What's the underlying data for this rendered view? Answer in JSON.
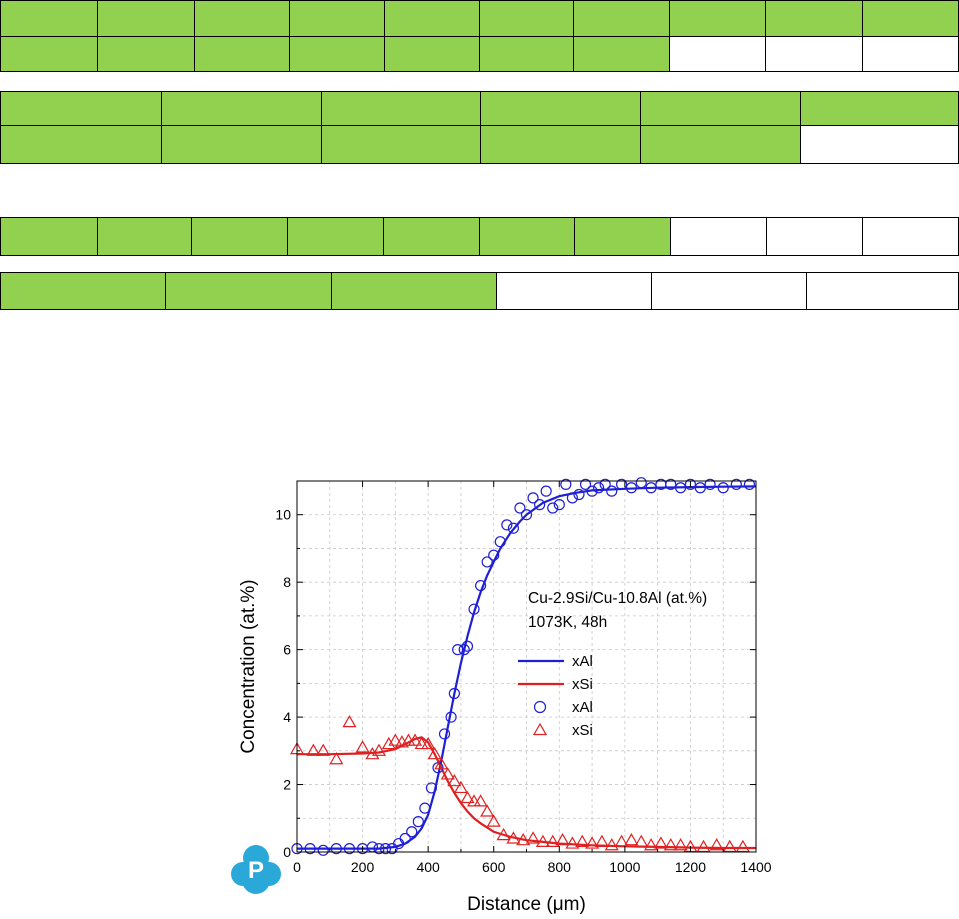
{
  "table_blocks": {
    "block1_row1": [
      "g",
      "g",
      "g",
      "g",
      "g",
      "g",
      "g",
      "g",
      "g",
      "g"
    ],
    "block1_row2": [
      "g",
      "g",
      "g",
      "g",
      "g",
      "g",
      "g",
      "w",
      "w",
      "w"
    ],
    "block2_row1": [
      "g",
      "g",
      "g",
      "g",
      "g",
      "g"
    ],
    "block2_row2": [
      "g",
      "g",
      "g",
      "g",
      "g",
      "w"
    ],
    "block3_row1": [
      "g",
      "g",
      "g",
      "g",
      "g",
      "g",
      "g",
      "w",
      "w",
      "w"
    ],
    "block4_row1": [
      "g",
      "g",
      "g",
      "w",
      "w",
      "w"
    ],
    "colors": {
      "filled": "#92d050",
      "empty": "#ffffff",
      "border": "#000000"
    }
  },
  "logo": {
    "letter": "P",
    "color": "#2aa8d8"
  },
  "chart_data": {
    "type": "line",
    "xlabel_prefix": "Distance (",
    "xlabel_mu": "μ",
    "xlabel_suffix": "m)",
    "ylabel": "Concentration (at.%)",
    "xlim": [
      0,
      1400
    ],
    "ylim": [
      0,
      11
    ],
    "xticks": [
      0,
      200,
      400,
      600,
      800,
      1000,
      1200,
      1400
    ],
    "yticks": [
      0,
      2,
      4,
      6,
      8,
      10
    ],
    "grid": true,
    "annotation": [
      "Cu-2.9Si/Cu-10.8Al (at.%)",
      "1073K, 48h"
    ],
    "legend": [
      {
        "label": "xAl",
        "kind": "line",
        "color": "#1f1fd6"
      },
      {
        "label": "xSi",
        "kind": "line",
        "color": "#e02020"
      },
      {
        "label": "xAl",
        "kind": "circle",
        "color": "#1f1fd6"
      },
      {
        "label": "xSi",
        "kind": "triangle",
        "color": "#e02020"
      }
    ],
    "series": [
      {
        "name": "xAl",
        "kind": "line",
        "color": "#1f1fd6",
        "x": [
          0,
          100,
          200,
          250,
          300,
          330,
          360,
          380,
          400,
          420,
          440,
          460,
          480,
          500,
          520,
          540,
          560,
          580,
          600,
          620,
          650,
          680,
          700,
          750,
          800,
          850,
          900,
          1000,
          1100,
          1200,
          1300,
          1400
        ],
        "y": [
          0.1,
          0.1,
          0.1,
          0.1,
          0.15,
          0.25,
          0.45,
          0.7,
          1.1,
          1.8,
          2.7,
          3.7,
          4.7,
          5.6,
          6.4,
          7.1,
          7.7,
          8.2,
          8.6,
          9.0,
          9.45,
          9.8,
          10.0,
          10.35,
          10.55,
          10.65,
          10.72,
          10.77,
          10.8,
          10.82,
          10.83,
          10.84
        ]
      },
      {
        "name": "xSi",
        "kind": "line",
        "color": "#e02020",
        "x": [
          0,
          100,
          200,
          250,
          300,
          330,
          360,
          380,
          400,
          420,
          440,
          460,
          480,
          500,
          520,
          540,
          560,
          600,
          650,
          700,
          750,
          800,
          900,
          1000,
          1100,
          1200,
          1300,
          1400
        ],
        "y": [
          2.9,
          2.9,
          2.92,
          2.95,
          3.05,
          3.2,
          3.35,
          3.4,
          3.25,
          2.9,
          2.5,
          2.1,
          1.75,
          1.45,
          1.2,
          1.0,
          0.85,
          0.6,
          0.45,
          0.35,
          0.3,
          0.25,
          0.2,
          0.17,
          0.15,
          0.13,
          0.12,
          0.12
        ]
      },
      {
        "name": "xAl",
        "kind": "circle",
        "color": "#1f1fd6",
        "x": [
          0,
          40,
          80,
          120,
          160,
          200,
          230,
          250,
          270,
          290,
          310,
          330,
          350,
          370,
          390,
          410,
          430,
          450,
          470,
          480,
          490,
          510,
          520,
          540,
          560,
          580,
          600,
          620,
          640,
          660,
          680,
          700,
          720,
          740,
          760,
          780,
          800,
          820,
          840,
          860,
          880,
          900,
          920,
          940,
          960,
          990,
          1020,
          1050,
          1080,
          1110,
          1140,
          1170,
          1200,
          1230,
          1260,
          1300,
          1340,
          1380
        ],
        "y": [
          0.1,
          0.1,
          0.05,
          0.1,
          0.1,
          0.1,
          0.15,
          0.1,
          0.1,
          0.1,
          0.25,
          0.4,
          0.6,
          0.9,
          1.3,
          1.9,
          2.5,
          3.5,
          4.0,
          4.7,
          6.0,
          6.0,
          6.1,
          7.2,
          7.9,
          8.6,
          8.8,
          9.2,
          9.7,
          9.6,
          10.2,
          10.0,
          10.5,
          10.3,
          10.7,
          10.2,
          10.3,
          10.9,
          10.5,
          10.6,
          10.9,
          10.7,
          10.8,
          10.9,
          10.7,
          10.9,
          10.8,
          10.95,
          10.8,
          10.9,
          10.9,
          10.8,
          10.9,
          10.8,
          10.9,
          10.8,
          10.9,
          10.9
        ]
      },
      {
        "name": "xSi",
        "kind": "triangle",
        "color": "#e02020",
        "x": [
          0,
          50,
          80,
          120,
          160,
          200,
          230,
          250,
          280,
          300,
          320,
          340,
          360,
          380,
          400,
          420,
          440,
          460,
          480,
          500,
          520,
          540,
          560,
          580,
          600,
          630,
          660,
          690,
          720,
          750,
          780,
          810,
          840,
          870,
          900,
          930,
          960,
          990,
          1020,
          1050,
          1080,
          1110,
          1140,
          1170,
          1200,
          1240,
          1280,
          1320,
          1360
        ],
        "y": [
          3.05,
          3.0,
          3.0,
          2.75,
          3.85,
          3.1,
          2.9,
          3.0,
          3.2,
          3.3,
          3.25,
          3.3,
          3.3,
          3.2,
          3.2,
          2.9,
          2.6,
          2.3,
          2.1,
          1.9,
          1.6,
          1.5,
          1.5,
          1.2,
          0.9,
          0.5,
          0.4,
          0.35,
          0.4,
          0.3,
          0.3,
          0.35,
          0.25,
          0.3,
          0.25,
          0.3,
          0.2,
          0.3,
          0.35,
          0.3,
          0.2,
          0.25,
          0.2,
          0.2,
          0.15,
          0.15,
          0.2,
          0.15,
          0.15
        ]
      }
    ]
  }
}
